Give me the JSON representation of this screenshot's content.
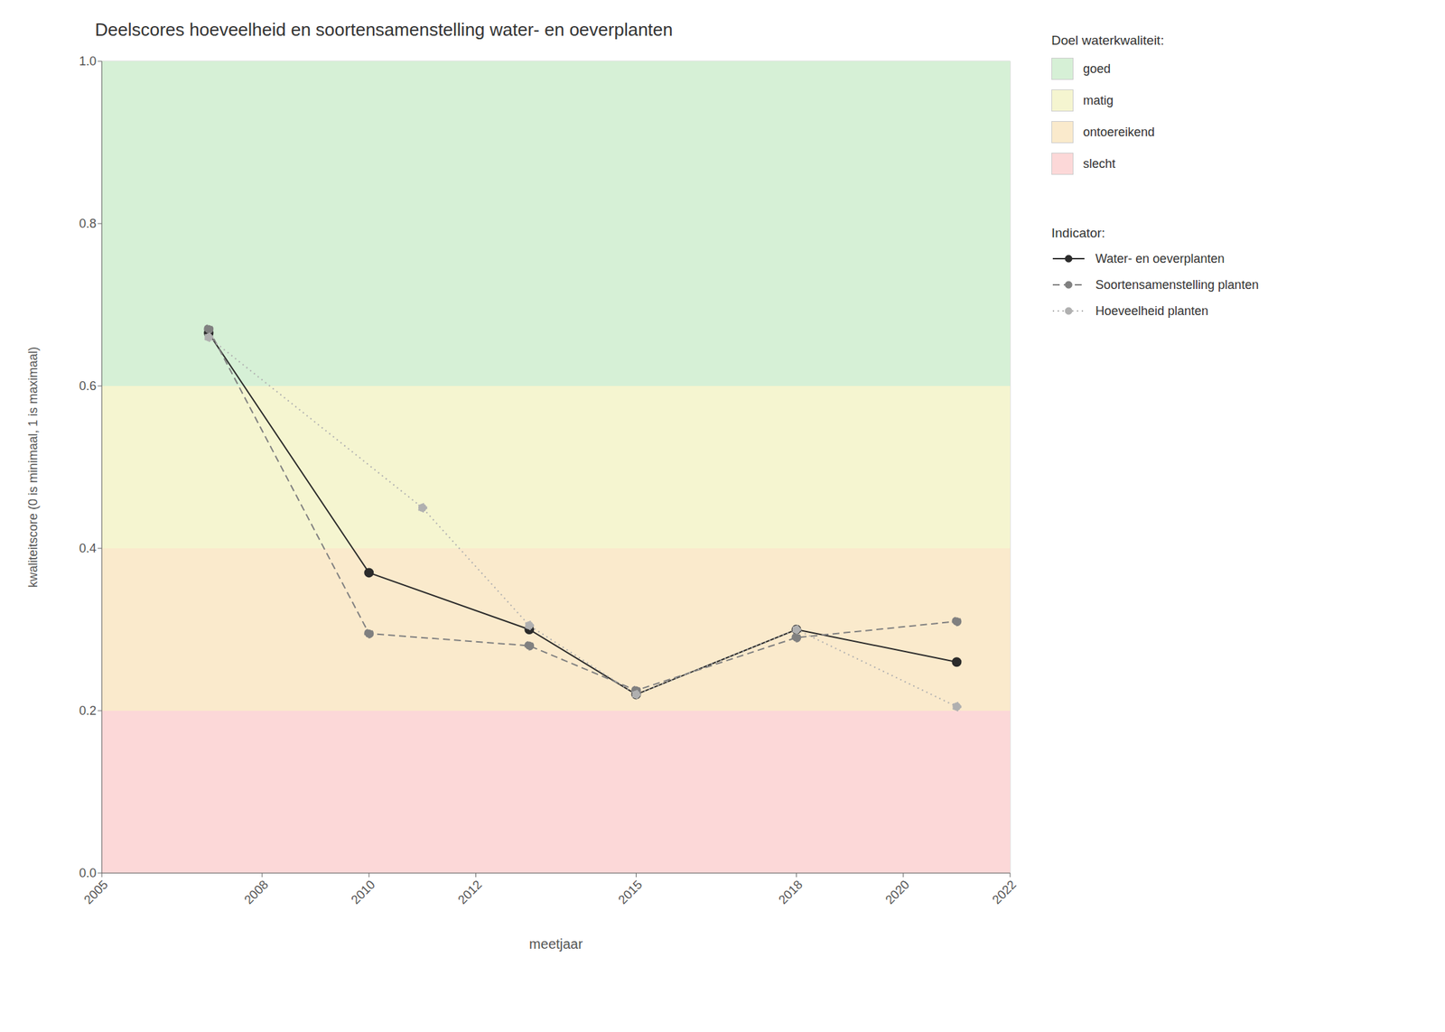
{
  "chart_data": {
    "type": "line",
    "title": "Deelscores hoeveelheid en soortensamenstelling water- en oeverplanten",
    "x_label": "meetjaar",
    "y_label": "kwaliteitscore (0 is minimaal, 1 is maximaal)",
    "xlim": [
      2005,
      2022
    ],
    "ylim": [
      0,
      1
    ],
    "xticks": [
      2005,
      2008,
      2010,
      2012,
      2015,
      2018,
      2020,
      2022
    ],
    "yticks": [
      {
        "value": 0,
        "label": "0.0"
      },
      0.2,
      0.4,
      0.6,
      0.8,
      {
        "value": 1,
        "label": "1.0"
      }
    ],
    "grid": true,
    "legend": "right",
    "bands_title": "Doel waterkwaliteit:",
    "bands": [
      {
        "from": 0.6,
        "to": 1.0,
        "color": "#d6f0d6",
        "label": "goed"
      },
      {
        "from": 0.4,
        "to": 0.6,
        "color": "#f5f5d0",
        "label": "matig"
      },
      {
        "from": 0.2,
        "to": 0.4,
        "color": "#faeacc",
        "label": "ontoereikend"
      },
      {
        "from": 0.0,
        "to": 0.2,
        "color": "#fcd8d8",
        "label": "slecht"
      }
    ],
    "legend_title": "Indicator:",
    "series": [
      {
        "name": "Water- en oeverplanten",
        "x": [
          2007,
          2010,
          2013,
          2015,
          2018,
          2021
        ],
        "values": [
          0.665,
          0.37,
          0.3,
          0.22,
          0.3,
          0.26
        ],
        "color": "#2b2b2b",
        "line_style": "solid",
        "marker": "circle"
      },
      {
        "name": "Soortensamenstelling planten",
        "x": [
          2007,
          2010,
          2013,
          2015,
          2018,
          2021
        ],
        "values": [
          0.67,
          0.295,
          0.28,
          0.225,
          0.29,
          0.31
        ],
        "color": "#808080",
        "line_style": "dashed",
        "marker": "circle"
      },
      {
        "name": "Hoeveelheid planten",
        "x": [
          2007,
          2011,
          2013,
          2015,
          2018,
          2021
        ],
        "values": [
          0.66,
          0.45,
          0.305,
          0.22,
          0.3,
          0.205
        ],
        "color": "#b0b0b0",
        "line_style": "dotted",
        "marker": "circle"
      }
    ]
  }
}
